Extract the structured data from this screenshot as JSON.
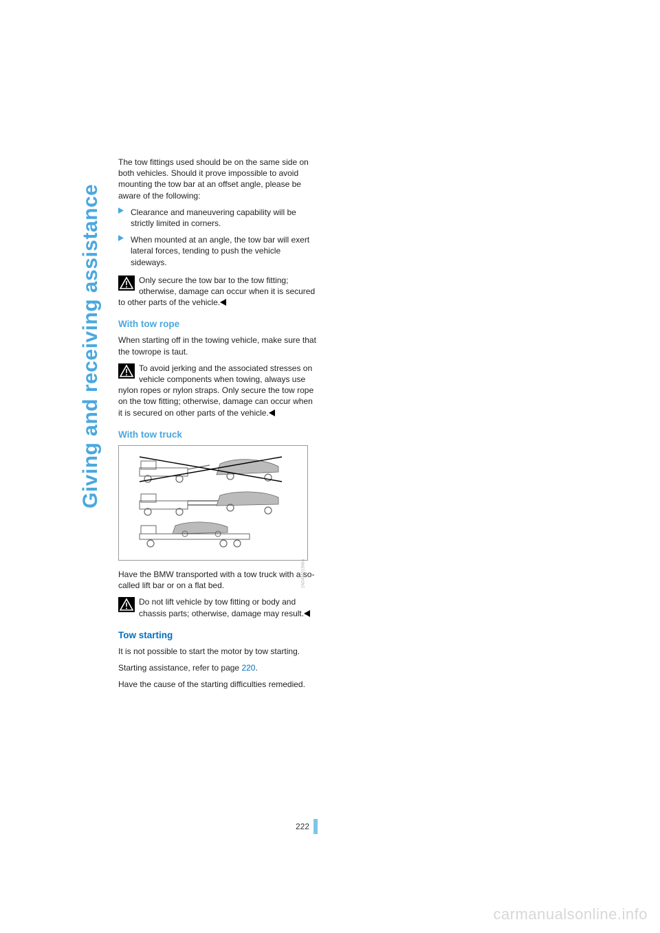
{
  "colors": {
    "accent_light": "#4aa8e0",
    "accent_dark": "#0070c0",
    "text": "#222222",
    "watermark": "#d7d7d7",
    "pagebar": "#7cc5ec",
    "figure_border": "#999999"
  },
  "side_title": "Giving and receiving assistance",
  "intro": "The tow fittings used should be on the same side on both vehicles. Should it prove impossible to avoid mounting the tow bar at an offset angle, please be aware of the following:",
  "bullets": [
    "Clearance and maneuvering capability will be strictly limited in corners.",
    "When mounted at an angle, the tow bar will exert lateral forces, tending to push the vehicle sideways."
  ],
  "warn1": "Only secure the tow bar to the tow fitting; otherwise, damage can occur when it is secured to other parts of the vehicle.",
  "sec_rope": {
    "title": "With tow rope",
    "p1": "When starting off in the towing vehicle, make sure that the towrope is taut.",
    "warn": "To avoid jerking and the associated stresses on vehicle components when towing, always use nylon ropes or nylon straps. Only secure the tow rope on the tow fitting; otherwise, damage can occur when it is secured on other parts of the vehicle."
  },
  "sec_truck": {
    "title": "With tow truck",
    "caption": "Have the BMW transported with a tow truck with a so-called lift bar or on a flat bed.",
    "warn": "Do not lift vehicle by tow fitting or body and chassis parts; otherwise, damage may result."
  },
  "sec_start": {
    "title": "Tow starting",
    "p1": "It is not possible to start the motor by tow starting.",
    "p2a": "Starting assistance, refer to page ",
    "p2_link": "220",
    "p2b": ".",
    "p3": "Have the cause of the starting difficulties remedied."
  },
  "page_number": "222",
  "watermark": "carmanualsonline.info",
  "figure_code": "1N04M015MA"
}
